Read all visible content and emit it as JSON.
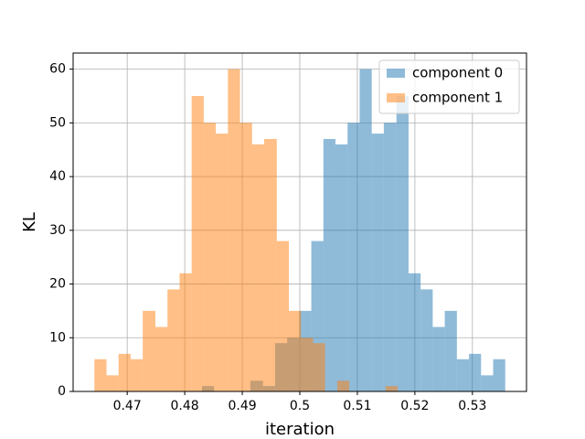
{
  "chart_data": {
    "type": "histogram",
    "xlabel": "iteration",
    "ylabel": "KL",
    "series": [
      {
        "name": "component 0",
        "color": "#1f77b4",
        "bins": [
          0.483,
          0.4851,
          0.4872,
          0.4893,
          0.4914,
          0.4936,
          0.4957,
          0.4978,
          0.4999,
          0.502,
          0.5041,
          0.5062,
          0.5083,
          0.5104,
          0.5125,
          0.5146,
          0.5168,
          0.5189,
          0.521,
          0.5231,
          0.5252,
          0.5273,
          0.5294,
          0.5315,
          0.5336,
          0.5357
        ],
        "values": [
          1,
          0,
          0,
          0,
          2,
          1,
          9,
          10,
          15,
          28,
          47,
          46,
          50,
          60,
          48,
          50,
          55,
          22,
          19,
          12,
          15,
          6,
          7,
          3,
          6
        ]
      },
      {
        "name": "component 1",
        "color": "#ff7f0e",
        "bins": [
          0.4643,
          0.4664,
          0.4685,
          0.4706,
          0.4727,
          0.4749,
          0.477,
          0.4791,
          0.4812,
          0.4833,
          0.4854,
          0.4875,
          0.4896,
          0.4917,
          0.4938,
          0.496,
          0.4981,
          0.5002,
          0.5023,
          0.5044,
          0.5065,
          0.5086,
          0.5107,
          0.5128,
          0.5149,
          0.517
        ],
        "values": [
          6,
          3,
          7,
          6,
          15,
          12,
          19,
          22,
          55,
          50,
          48,
          60,
          50,
          46,
          47,
          28,
          15,
          10,
          9,
          0,
          2,
          0,
          0,
          0,
          1
        ]
      }
    ],
    "alpha": 0.5,
    "xlim": [
      0.4606,
      0.5394
    ],
    "xticks": [
      0.47,
      0.48,
      0.49,
      0.5,
      0.51,
      0.52,
      0.53
    ],
    "ylim": [
      0,
      63
    ],
    "yticks": [
      0,
      10,
      20,
      30,
      40,
      50,
      60
    ],
    "grid": true,
    "legend": "upper right"
  }
}
